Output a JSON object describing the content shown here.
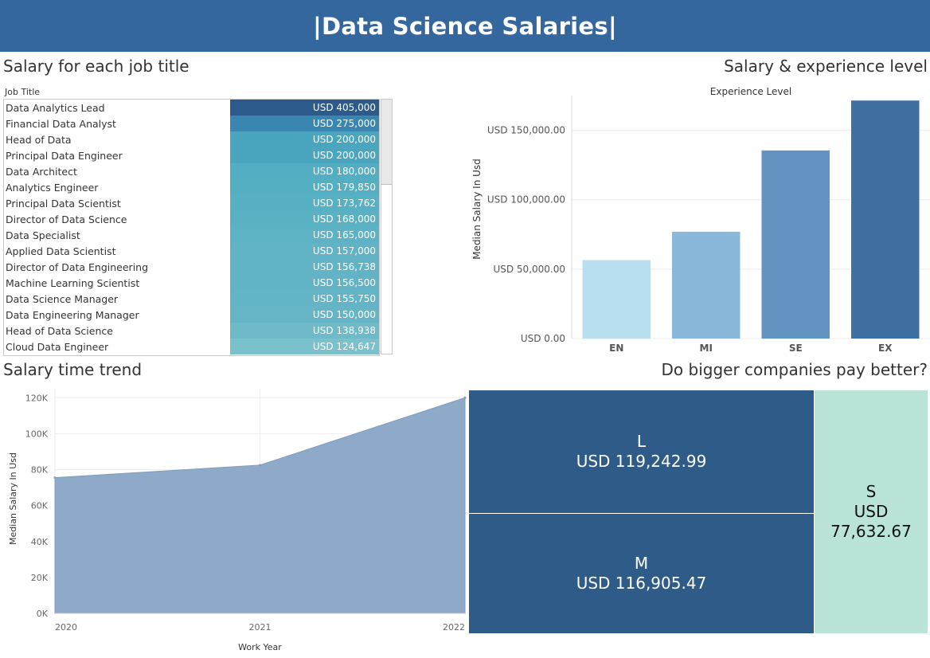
{
  "header": {
    "title": "|Data Science Salaries|"
  },
  "sections": {
    "job_title": "Salary for each job title",
    "experience": "Salary & experience level",
    "time_trend": "Salary time trend",
    "company_size": "Do bigger companies pay better?"
  },
  "chart_data": [
    {
      "type": "table",
      "column_header": "Job Title",
      "rows": [
        {
          "label": "Data Analytics Lead",
          "value": 405000,
          "display": "USD 405,000",
          "color": "#2c5a8a"
        },
        {
          "label": "Financial Data Analyst",
          "value": 275000,
          "display": "USD 275,000",
          "color": "#3987b0"
        },
        {
          "label": "Head of Data",
          "value": 200000,
          "display": "USD 200,000",
          "color": "#4aa6bf"
        },
        {
          "label": "Principal Data Engineer",
          "value": 200000,
          "display": "USD 200,000",
          "color": "#4aa6bf"
        },
        {
          "label": "Data Architect",
          "value": 180000,
          "display": "USD 180,000",
          "color": "#54aec3"
        },
        {
          "label": "Analytics Engineer",
          "value": 179850,
          "display": "USD 179,850",
          "color": "#55afc3"
        },
        {
          "label": "Principal Data Scientist",
          "value": 173762,
          "display": "USD 173,762",
          "color": "#58b0c4"
        },
        {
          "label": "Director of Data Science",
          "value": 168000,
          "display": "USD 168,000",
          "color": "#5bb1c4"
        },
        {
          "label": "Data Specialist",
          "value": 165000,
          "display": "USD 165,000",
          "color": "#5db2c5"
        },
        {
          "label": "Applied Data Scientist",
          "value": 157000,
          "display": "USD 157,000",
          "color": "#61b3c5"
        },
        {
          "label": "Director of Data Engineering",
          "value": 156738,
          "display": "USD 156,738",
          "color": "#62b3c5"
        },
        {
          "label": "Machine Learning Scientist",
          "value": 156500,
          "display": "USD 156,500",
          "color": "#62b3c5"
        },
        {
          "label": "Data Science Manager",
          "value": 155750,
          "display": "USD 155,750",
          "color": "#63b4c6"
        },
        {
          "label": "Data Engineering Manager",
          "value": 150000,
          "display": "USD 150,000",
          "color": "#66b5c6"
        },
        {
          "label": "Head of Data Science",
          "value": 138938,
          "display": "USD 138,938",
          "color": "#6fbac8"
        },
        {
          "label": "Cloud Data Engineer",
          "value": 124647,
          "display": "USD 124,647",
          "color": "#7bc1cb"
        }
      ]
    },
    {
      "type": "bar",
      "title": "Experience Level",
      "ylabel": "Median Salary In Usd",
      "categories": [
        "EN",
        "MI",
        "SE",
        "EX"
      ],
      "values": [
        56500,
        76940,
        135500,
        171437
      ],
      "colors": [
        "#b8def0",
        "#89b8da",
        "#6394c1",
        "#3f6ea0"
      ],
      "ylim": [
        0,
        175000
      ],
      "yticks": [
        0,
        50000,
        100000,
        150000
      ],
      "ytick_labels": [
        "USD 0.00",
        "USD 50,000.00",
        "USD 100,000.00",
        "USD 150,000.00"
      ]
    },
    {
      "type": "area",
      "xlabel": "Work Year",
      "ylabel": "Median Salary In Usd",
      "x": [
        2020,
        2021,
        2022
      ],
      "x_labels": [
        "2020",
        "2021",
        "2022"
      ],
      "values": [
        75544,
        82528,
        120000
      ],
      "ylim": [
        0,
        125000
      ],
      "yticks": [
        0,
        20000,
        40000,
        60000,
        80000,
        100000,
        120000
      ],
      "ytick_labels": [
        "0K",
        "20K",
        "40K",
        "60K",
        "80K",
        "100K",
        "120K"
      ],
      "color": "#8fa9c8"
    },
    {
      "type": "treemap",
      "cells": [
        {
          "label": "L",
          "value": 119242.99,
          "display": "USD 119,242.99",
          "color": "#2e5b88"
        },
        {
          "label": "M",
          "value": 116905.47,
          "display": "USD 116,905.47",
          "color": "#2e5b88"
        },
        {
          "label": "S",
          "value": 77632.67,
          "display_line1": "USD",
          "display_line2": "77,632.67",
          "color": "#bbe4d9"
        }
      ]
    }
  ]
}
